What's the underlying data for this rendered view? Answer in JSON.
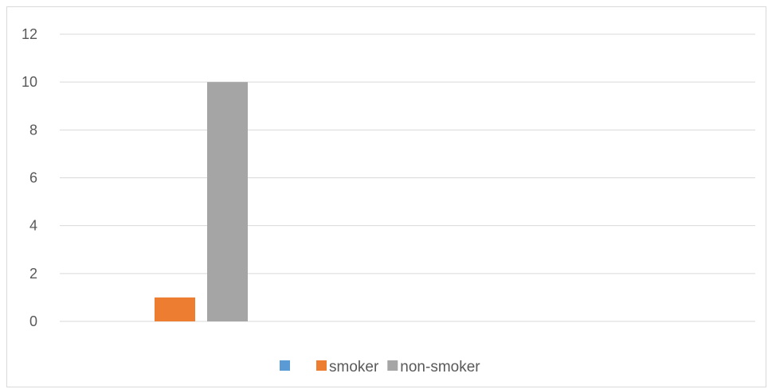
{
  "chart_data": {
    "type": "bar",
    "title": "",
    "xlabel": "",
    "ylabel": "",
    "categories": [
      ""
    ],
    "series": [
      {
        "name": "",
        "values": [
          0
        ],
        "color": "#5b9bd5"
      },
      {
        "name": "smoker",
        "values": [
          1
        ],
        "color": "#ed7d31"
      },
      {
        "name": "non-smoker",
        "values": [
          10
        ],
        "color": "#a5a5a5"
      }
    ],
    "ylim": [
      0,
      12
    ],
    "yticks": [
      "0",
      "2",
      "4",
      "6",
      "8",
      "10",
      "12"
    ],
    "grid": true,
    "legend": "bottom",
    "gridline_color": "#d9d9d9",
    "text_color": "#595959"
  }
}
